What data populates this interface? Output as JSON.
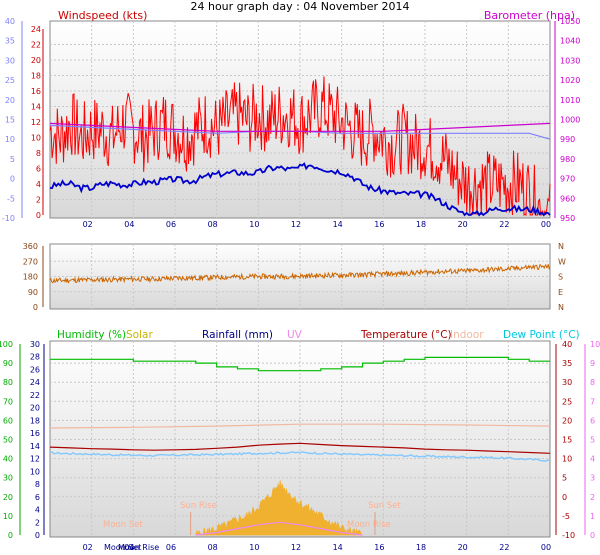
{
  "title": "24 hour graph day : 04 November 2014",
  "x_ticks": [
    "02",
    "04",
    "06",
    "08",
    "10",
    "12",
    "14",
    "16",
    "18",
    "20",
    "22",
    "00"
  ],
  "colors": {
    "windspeed": "#ff0000",
    "windavg": "#0000cc",
    "barometer": "#cc00cc",
    "baro_short": "#8080ff",
    "wind_dir": "#cc6600",
    "humidity": "#00bb00",
    "temperature": "#aa0000",
    "indoor": "#f0b8a0",
    "dew_point": "#80c8ff",
    "solar": "#f0b030",
    "uv": "#ee88ee",
    "moon": "#ffb090"
  },
  "chart_data": [
    {
      "type": "line",
      "name": "wind-and-barometer",
      "left_axis_title": "Windspeed (kts)",
      "right_axis_title": "Barometer (hpa)",
      "left_ticks": [
        "24",
        "22",
        "20",
        "18",
        "16",
        "14",
        "12",
        "10",
        "8",
        "6",
        "4",
        "2",
        "0"
      ],
      "outer_left_ticks": [
        "40",
        "35",
        "30",
        "25",
        "20",
        "15",
        "10",
        "5",
        "0",
        "-5",
        "-10"
      ],
      "right_ticks": [
        "1050",
        "1040",
        "1030",
        "1020",
        "1010",
        "1000",
        "990",
        "980",
        "970",
        "960",
        "950"
      ],
      "ylim_left": [
        0,
        25
      ],
      "ylim_right": [
        948,
        1052
      ],
      "series": [
        {
          "role": "windspeed-gust",
          "x": [
            0,
            0.5,
            1,
            1.5,
            2,
            2.5,
            3,
            3.5,
            4,
            4.5,
            5,
            5.5,
            6,
            6.5,
            7,
            7.5,
            8,
            8.5,
            9,
            9.5,
            10,
            10.5,
            11,
            11.5,
            12,
            12.5,
            13,
            13.5,
            14,
            14.5,
            15,
            15.5,
            16,
            16.5,
            17,
            17.5,
            18,
            18.5,
            19,
            19.5,
            20,
            20.5,
            21,
            21.5,
            22,
            22.5,
            23,
            23.5,
            24
          ],
          "values": [
            11,
            10,
            12,
            10,
            11,
            11,
            10,
            12,
            11,
            10,
            11,
            12,
            11,
            10,
            11,
            12,
            11,
            12,
            13,
            12,
            13,
            12,
            13,
            13,
            12,
            13,
            14,
            13,
            12,
            11,
            10,
            11,
            10,
            9,
            10,
            9,
            9,
            8,
            7,
            5,
            4,
            4,
            4,
            4,
            4,
            4,
            3,
            1,
            0
          ],
          "ylim_side": "left"
        },
        {
          "role": "windspeed-average",
          "x": [
            0,
            0.5,
            1,
            1.5,
            2,
            2.5,
            3,
            3.5,
            4,
            4.5,
            5,
            5.5,
            6,
            6.5,
            7,
            7.5,
            8,
            8.5,
            9,
            9.5,
            10,
            10.5,
            11,
            11.5,
            12,
            12.5,
            13,
            13.5,
            14,
            14.5,
            15,
            15.5,
            16,
            16.5,
            17,
            17.5,
            18,
            18.5,
            19,
            19.5,
            20,
            20.5,
            21,
            21.5,
            22,
            22.5,
            23,
            23.5,
            24
          ],
          "values": [
            3.5,
            4,
            4.5,
            3,
            3.5,
            4,
            4.5,
            3.5,
            4,
            4.5,
            4,
            4.5,
            5,
            4,
            4.5,
            5,
            5.5,
            5,
            6,
            5,
            5.5,
            6,
            6.5,
            5.5,
            6,
            7,
            6,
            5.5,
            6,
            5,
            4,
            3,
            3.5,
            2.5,
            3,
            2.5,
            3,
            2,
            1.5,
            0.5,
            0,
            0,
            0.5,
            1,
            1,
            0.5,
            1,
            0.5,
            0
          ],
          "ylim_side": "left"
        },
        {
          "role": "barometer",
          "x": [
            0,
            2,
            4,
            6,
            8,
            10,
            12,
            14,
            16,
            18,
            20,
            22,
            24
          ],
          "values": [
            998,
            997,
            996,
            995,
            994,
            994,
            994,
            994,
            994,
            995,
            996,
            997,
            998
          ],
          "ylim_side": "right"
        },
        {
          "role": "barometer-secondary",
          "x": [
            0,
            2,
            4,
            6,
            8,
            10,
            12,
            14,
            16,
            18,
            20,
            22,
            23,
            24
          ],
          "values": [
            997,
            996,
            995,
            994,
            993,
            994,
            994,
            993,
            993,
            993,
            993,
            993,
            993,
            990
          ],
          "ylim_side": "right"
        }
      ]
    },
    {
      "type": "line",
      "name": "wind-direction",
      "left_ticks": [
        "360",
        "270",
        "180",
        "90",
        "0"
      ],
      "right_ticks": [
        "N",
        "W",
        "S",
        "E",
        "N"
      ],
      "ylim": [
        0,
        360
      ],
      "series": [
        {
          "role": "wind-direction",
          "x": [
            0,
            1,
            2,
            3,
            4,
            5,
            6,
            7,
            8,
            9,
            10,
            11,
            12,
            13,
            14,
            15,
            16,
            17,
            18,
            19,
            20,
            21,
            22,
            23,
            24
          ],
          "values": [
            155,
            158,
            160,
            162,
            165,
            165,
            170,
            172,
            175,
            178,
            180,
            180,
            182,
            185,
            188,
            190,
            195,
            198,
            205,
            210,
            212,
            220,
            225,
            235,
            238
          ]
        }
      ]
    },
    {
      "type": "line",
      "name": "humidity-temperature",
      "legend": [
        "Humidity (%)",
        "Solar",
        "Rainfall (mm)",
        "UV",
        "Temperature (°C)",
        "Indoor",
        "Dew Point (°C)"
      ],
      "left_ticks": [
        "100",
        "90",
        "80",
        "70",
        "60",
        "50",
        "40",
        "30",
        "20",
        "10",
        "0"
      ],
      "rain_ticks": [
        "30",
        "28",
        "26",
        "24",
        "22",
        "20",
        "18",
        "16",
        "14",
        "12",
        "10",
        "8",
        "6",
        "4",
        "2",
        "0"
      ],
      "temp_ticks": [
        "40",
        "35",
        "30",
        "25",
        "20",
        "15",
        "10",
        "5",
        "0",
        "-5",
        "-10"
      ],
      "uv_ticks": [
        "10",
        "9",
        "8",
        "7",
        "6",
        "5",
        "4",
        "3",
        "2",
        "1",
        "0"
      ],
      "ylim_humidity": [
        0,
        100
      ],
      "ylim_temperature": [
        -10,
        40
      ],
      "annotations": [
        "Moon Set",
        "Sun Rise",
        "Sun Set",
        "Moon Rise"
      ],
      "bottom_labels": [
        "Moon Set",
        "Moon Rise"
      ],
      "series": [
        {
          "role": "humidity",
          "x": [
            0,
            1,
            2,
            3,
            4,
            5,
            6,
            7,
            8,
            9,
            10,
            11,
            12,
            13,
            14,
            15,
            16,
            17,
            18,
            19,
            20,
            21,
            22,
            23,
            24
          ],
          "values": [
            92,
            92,
            92,
            92,
            91,
            91,
            91,
            90,
            88,
            87,
            86,
            86,
            86,
            87,
            88,
            90,
            91,
            92,
            93,
            93,
            93,
            93,
            92,
            91,
            91
          ]
        },
        {
          "role": "temperature",
          "x": [
            0,
            1,
            2,
            3,
            4,
            5,
            6,
            7,
            8,
            9,
            10,
            11,
            12,
            13,
            14,
            15,
            16,
            17,
            18,
            19,
            20,
            21,
            22,
            23,
            24
          ],
          "values": [
            13,
            12.8,
            12.6,
            12.5,
            12.3,
            12.2,
            12.3,
            12.4,
            12.7,
            13,
            13.5,
            13.8,
            14,
            13.7,
            13.4,
            13.2,
            13,
            12.8,
            12.5,
            12.3,
            12.2,
            12,
            11.8,
            11.6,
            11.4
          ],
          "ylim_side": "temperature"
        },
        {
          "role": "indoor",
          "x": [
            0,
            4,
            8,
            12,
            16,
            20,
            24
          ],
          "values": [
            18,
            18.2,
            18.5,
            19,
            19,
            18.8,
            18.5
          ],
          "ylim_side": "temperature"
        },
        {
          "role": "dew-point",
          "x": [
            0,
            1,
            2,
            3,
            4,
            5,
            6,
            7,
            8,
            9,
            10,
            11,
            12,
            13,
            14,
            15,
            16,
            17,
            18,
            19,
            20,
            21,
            22,
            23,
            24
          ],
          "values": [
            11.5,
            11.3,
            11.2,
            11,
            10.9,
            10.8,
            10.9,
            11,
            11.1,
            11.2,
            11.4,
            11.5,
            11.6,
            11.4,
            11.2,
            11,
            10.9,
            10.8,
            10.6,
            10.5,
            10.4,
            10.3,
            10.1,
            9.8,
            9.5
          ],
          "ylim_side": "temperature"
        },
        {
          "role": "solar",
          "x": [
            7,
            7.5,
            8,
            8.5,
            9,
            9.5,
            10,
            10.5,
            11,
            11.5,
            12,
            12.5,
            13,
            13.5,
            14,
            14.5,
            15
          ],
          "values": [
            0,
            0.5,
            1,
            1.5,
            2.5,
            3,
            4.5,
            6,
            8,
            6.5,
            5,
            4,
            3,
            2,
            1,
            0.5,
            0
          ],
          "ylim_side": "rain"
        },
        {
          "role": "uv",
          "x": [
            7,
            8,
            9,
            10,
            11,
            12,
            13,
            14,
            15
          ],
          "values": [
            0,
            0.2,
            0.5,
            0.8,
            1,
            0.8,
            0.5,
            0.2,
            0
          ],
          "ylim_side": "uv"
        }
      ]
    }
  ]
}
